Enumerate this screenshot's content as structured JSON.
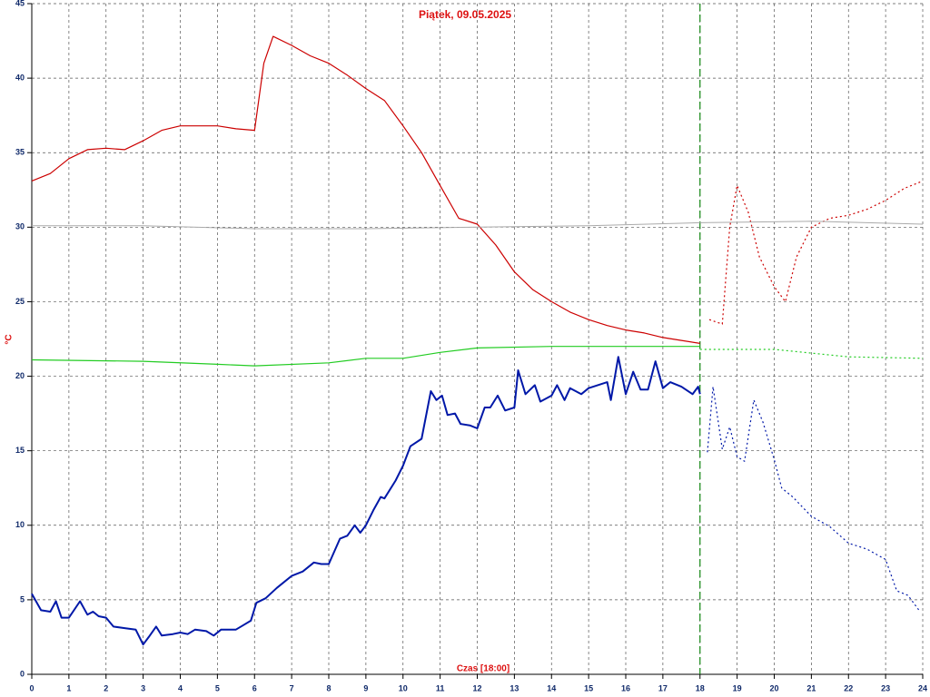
{
  "chart_data": {
    "type": "line",
    "title": "Piątek, 09.05.2025",
    "x_label": "Czas [18:00]",
    "y_label": "°C",
    "xlim": [
      0,
      24
    ],
    "ylim": [
      0,
      45
    ],
    "xticks": [
      0,
      1,
      2,
      3,
      4,
      5,
      6,
      7,
      8,
      9,
      10,
      11,
      12,
      13,
      14,
      15,
      16,
      17,
      18,
      19,
      20,
      21,
      22,
      23,
      24
    ],
    "yticks": [
      0,
      5,
      10,
      15,
      20,
      25,
      30,
      35,
      40,
      45
    ],
    "grid": true,
    "now_line": 18,
    "now_color": "#118811",
    "series": [
      {
        "color": "#cc0000",
        "dashed": false,
        "width": 1.2,
        "x": [
          0,
          0.5,
          1,
          1.5,
          2,
          2.5,
          3,
          3.5,
          4,
          4.5,
          5,
          5.5,
          6,
          6.25,
          6.5,
          7,
          7.5,
          8,
          8.5,
          9,
          9.5,
          10,
          10.5,
          11,
          11.5,
          12,
          12.5,
          13,
          13.5,
          14,
          14.5,
          15,
          15.5,
          16,
          16.5,
          17,
          17.5,
          18
        ],
        "values": [
          33.1,
          33.6,
          34.6,
          35.2,
          35.3,
          35.2,
          35.8,
          36.5,
          36.8,
          36.8,
          36.8,
          36.6,
          36.5,
          41,
          42.8,
          42.2,
          41.5,
          41.0,
          40.2,
          39.3,
          38.5,
          36.8,
          35,
          32.8,
          30.6,
          30.2,
          28.8,
          27,
          25.8,
          25,
          24.3,
          23.8,
          23.4,
          23.1,
          22.9,
          22.6,
          22.4,
          22.2
        ]
      },
      {
        "color": "#cc0000",
        "dashed": true,
        "width": 1.2,
        "x": [
          18.25,
          18.6,
          18.8,
          19,
          19.3,
          19.6,
          20,
          20.3,
          20.6,
          21,
          21.5,
          22,
          22.5,
          23,
          23.5,
          24
        ],
        "values": [
          23.8,
          23.5,
          30,
          32.8,
          31,
          28,
          26,
          25,
          28,
          30,
          30.6,
          30.8,
          31.2,
          31.8,
          32.6,
          33.1
        ]
      },
      {
        "color": "#aaaaaa",
        "dashed": false,
        "width": 1,
        "x": [
          0,
          3,
          6,
          9,
          12,
          15,
          18,
          21,
          24
        ],
        "values": [
          30.1,
          30.1,
          29.9,
          29.9,
          30.0,
          30.1,
          30.3,
          30.4,
          30.2
        ]
      },
      {
        "color": "#22cc22",
        "dashed": false,
        "width": 1.2,
        "x": [
          0,
          3,
          5,
          6,
          8,
          9,
          10,
          11,
          12,
          14,
          16,
          18
        ],
        "values": [
          21.1,
          21.0,
          20.8,
          20.7,
          20.9,
          21.2,
          21.2,
          21.6,
          21.9,
          22.0,
          22.0,
          22.0
        ]
      },
      {
        "color": "#22cc22",
        "dashed": true,
        "width": 1.2,
        "x": [
          18,
          20,
          22,
          24
        ],
        "values": [
          21.8,
          21.8,
          21.3,
          21.2
        ]
      },
      {
        "color": "#0018a8",
        "dashed": false,
        "width": 2,
        "x": [
          0,
          0.25,
          0.5,
          0.65,
          0.8,
          1,
          1.3,
          1.5,
          1.65,
          1.8,
          2,
          2.2,
          2.5,
          2.8,
          3,
          3.15,
          3.35,
          3.5,
          3.8,
          4,
          4.2,
          4.4,
          4.7,
          4.9,
          5.1,
          5.5,
          5.7,
          5.9,
          6.05,
          6.3,
          6.6,
          7,
          7.3,
          7.6,
          7.8,
          8,
          8.3,
          8.5,
          8.7,
          8.85,
          9,
          9.2,
          9.4,
          9.5,
          9.8,
          10,
          10.2,
          10.5,
          10.75,
          10.9,
          11.05,
          11.2,
          11.4,
          11.55,
          11.8,
          12,
          12.2,
          12.35,
          12.55,
          12.75,
          13,
          13.1,
          13.3,
          13.55,
          13.7,
          14,
          14.15,
          14.35,
          14.5,
          14.8,
          15,
          15.5,
          15.6,
          15.8,
          16,
          16.2,
          16.4,
          16.6,
          16.8,
          17,
          17.2,
          17.5,
          17.8,
          17.95,
          18
        ],
        "values": [
          5.4,
          4.3,
          4.2,
          4.9,
          3.8,
          3.8,
          4.9,
          4.0,
          4.2,
          3.9,
          3.8,
          3.2,
          3.1,
          3.0,
          2.0,
          2.5,
          3.2,
          2.6,
          2.7,
          2.8,
          2.7,
          3.0,
          2.9,
          2.6,
          3.0,
          3.0,
          3.3,
          3.6,
          4.8,
          5.1,
          5.8,
          6.6,
          6.9,
          7.5,
          7.4,
          7.4,
          9.1,
          9.3,
          10.0,
          9.5,
          10.0,
          11.0,
          11.9,
          11.8,
          13.0,
          14.0,
          15.3,
          15.8,
          19.0,
          18.4,
          18.7,
          17.4,
          17.5,
          16.8,
          16.7,
          16.5,
          17.9,
          17.9,
          18.7,
          17.7,
          17.9,
          20.4,
          18.8,
          19.4,
          18.3,
          18.7,
          19.4,
          18.4,
          19.2,
          18.8,
          19.2,
          19.6,
          18.4,
          21.3,
          18.8,
          20.3,
          19.1,
          19.1,
          21.0,
          19.2,
          19.6,
          19.3,
          18.8,
          19.3,
          18.8
        ]
      },
      {
        "color": "#0018a8",
        "dashed": true,
        "width": 1.2,
        "x": [
          18.2,
          18.35,
          18.6,
          18.8,
          19,
          19.2,
          19.45,
          19.7,
          20,
          20.2,
          20.5,
          21,
          21.5,
          22,
          22.5,
          23,
          23.3,
          23.6,
          23.9
        ],
        "values": [
          14.9,
          19.3,
          15.1,
          16.6,
          14.6,
          14.3,
          18.4,
          16.9,
          14.4,
          12.5,
          11.9,
          10.6,
          9.9,
          8.8,
          8.4,
          7.7,
          5.6,
          5.3,
          4.3
        ]
      }
    ]
  }
}
